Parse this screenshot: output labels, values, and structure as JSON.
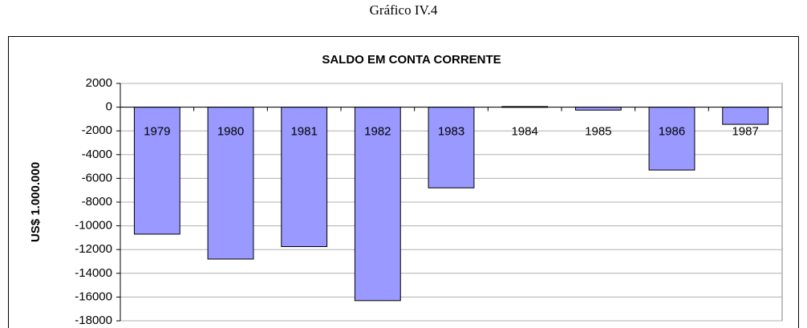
{
  "caption": "Gráfico IV.4",
  "chart_data": {
    "type": "bar",
    "title": "SALDO EM CONTA CORRENTE",
    "y_label": "US$ 1.000.000",
    "categories": [
      "1979",
      "1980",
      "1981",
      "1982",
      "1983",
      "1984",
      "1985",
      "1986",
      "1987"
    ],
    "values": [
      -10700,
      -12800,
      -11750,
      -16300,
      -6800,
      50,
      -250,
      -5300,
      -1450
    ],
    "color": "#9999ff",
    "ylim": [
      -18000,
      2000
    ],
    "yticks": [
      -18000,
      -16000,
      -14000,
      -12000,
      -10000,
      -8000,
      -6000,
      -4000,
      -2000,
      0,
      2000
    ],
    "grid": true
  }
}
